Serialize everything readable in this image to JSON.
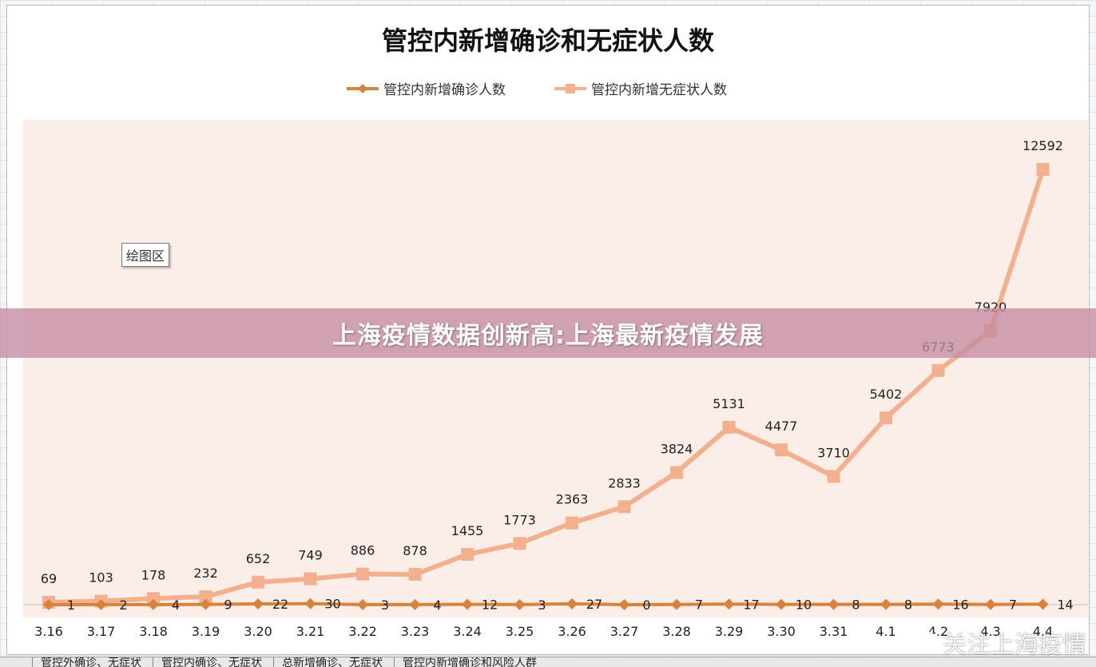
{
  "banner_text": "上海疫情数据创新高:上海最新疫情发展",
  "watermark_text": "关注上海疫情",
  "plot_area_tooltip": "绘图区",
  "sheet_tabs": [
    "管控外确诊、无症状",
    "管控内确诊、无症状",
    "总新增确诊、无症状",
    "管控内新增确诊和风险人群"
  ],
  "colors": {
    "plot_background": "#fbeee8",
    "confirmed_line": "#d9823b",
    "asymptomatic_line": "#f2b08f",
    "banner": "#c48ca0"
  },
  "chart_data": {
    "type": "line",
    "title": "管控内新增确诊和无症状人数",
    "categories": [
      "3.16",
      "3.17",
      "3.18",
      "3.19",
      "3.20",
      "3.21",
      "3.22",
      "3.23",
      "3.24",
      "3.25",
      "3.26",
      "3.27",
      "3.28",
      "3.29",
      "3.30",
      "3.31",
      "4.1",
      "4.2",
      "4.3",
      "4.4"
    ],
    "series": [
      {
        "name": "管控内新增确诊人数",
        "marker": "diamond",
        "values": [
          1,
          2,
          4,
          9,
          22,
          30,
          3,
          4,
          12,
          3,
          27,
          0,
          7,
          17,
          10,
          8,
          8,
          16,
          7,
          14
        ]
      },
      {
        "name": "管控内新增无症状人数",
        "marker": "square",
        "values": [
          69,
          103,
          178,
          232,
          652,
          749,
          886,
          878,
          1455,
          1773,
          2363,
          2833,
          3824,
          5131,
          4477,
          3710,
          5402,
          6773,
          7920,
          12592
        ]
      }
    ],
    "ylim": [
      0,
      13500
    ],
    "grid": false,
    "legend_position": "top"
  }
}
